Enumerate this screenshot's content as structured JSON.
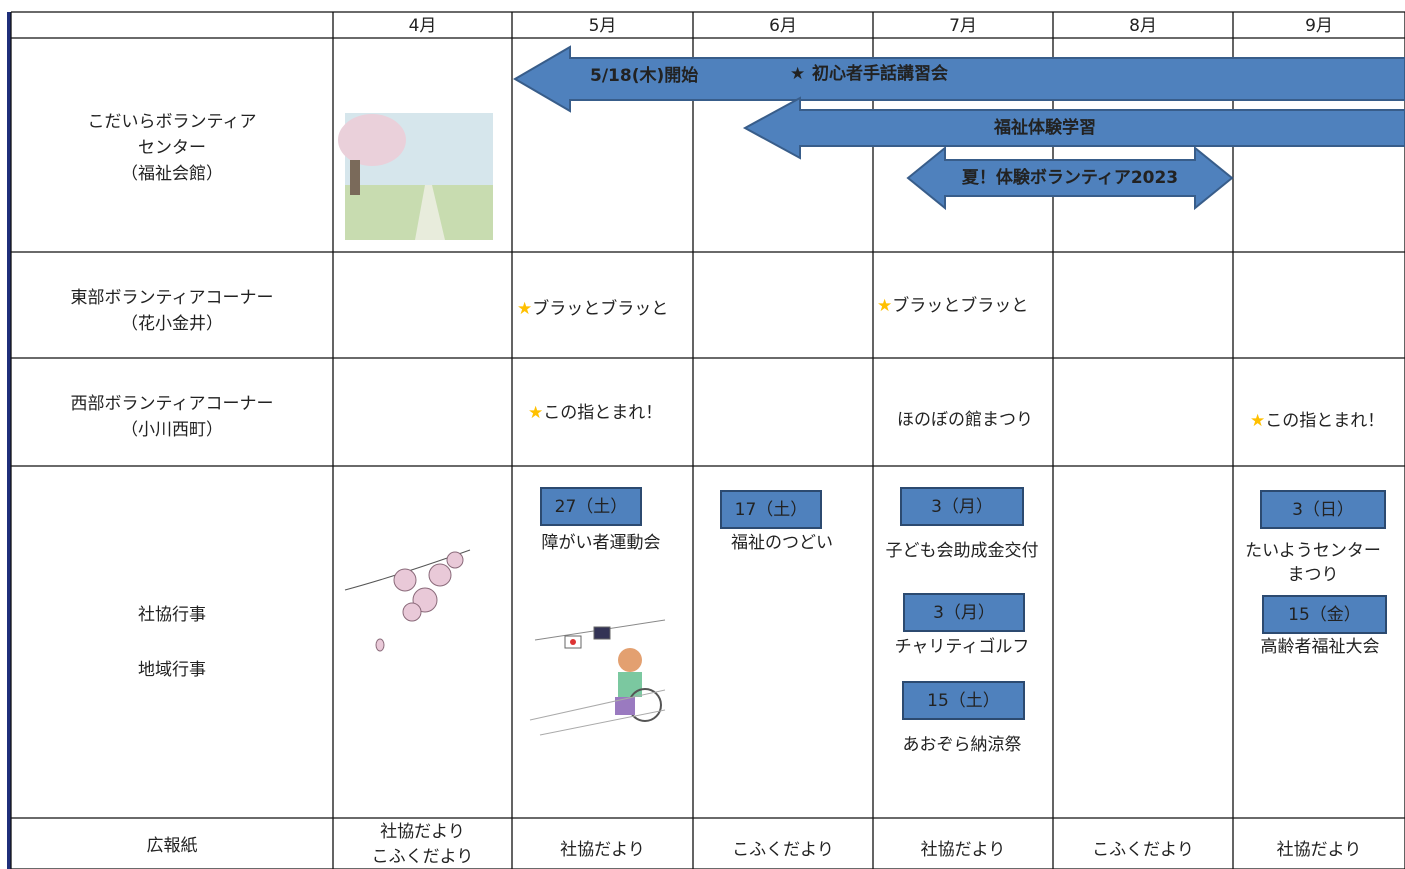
{
  "months": [
    "4月",
    "5月",
    "6月",
    "7月",
    "8月",
    "9月"
  ],
  "row_labels": [
    [
      "こだいらボランティア",
      "センター",
      "（福祉会館）"
    ],
    [
      "東部ボランティアコーナー",
      "（花小金井）"
    ],
    [
      "西部ボランティアコーナー",
      "（小川西町）"
    ],
    [
      "社協行事",
      "地域行事"
    ],
    [
      "広報紙"
    ]
  ],
  "center_banners": [
    {
      "start": "5/18(木)開始",
      "star": "★",
      "title": "初心者手話講習会"
    },
    {
      "title": "福祉体験学習"
    },
    {
      "title": "夏！体験ボランティア2023"
    }
  ],
  "east": [
    {
      "star": "★",
      "text": "ブラッとブラッと"
    },
    {
      "star": "★",
      "text": "ブラッとブラッと"
    }
  ],
  "west": [
    {
      "star": "★",
      "text": "この指とまれ！"
    },
    {
      "text": "ほのぼの館まつり"
    },
    {
      "star": "★",
      "text": "この指とまれ！"
    }
  ],
  "events": [
    {
      "date": "27（土）",
      "name": [
        "障がい者運動会"
      ]
    },
    {
      "date": "17（土）",
      "name": [
        "福祉のつどい"
      ]
    },
    {
      "date": "3（月）",
      "name": [
        "子ども会助成金交付"
      ]
    },
    {
      "date": "3（月）",
      "name": [
        "チャリティゴルフ"
      ]
    },
    {
      "date": "15（土）",
      "name": [
        "あおぞら納涼祭"
      ]
    },
    {
      "date": "3（日）",
      "name": [
        "たいようセンター",
        "まつり"
      ]
    },
    {
      "date": "15（金）",
      "name": [
        "高齢者福祉大会"
      ]
    }
  ],
  "newsletter": [
    [
      "社協だより",
      "こふくだより"
    ],
    [
      "社協だより"
    ],
    [
      "こふくだより"
    ],
    [
      "社協だより"
    ],
    [
      "こふくだより"
    ],
    [
      "社協だより"
    ]
  ]
}
